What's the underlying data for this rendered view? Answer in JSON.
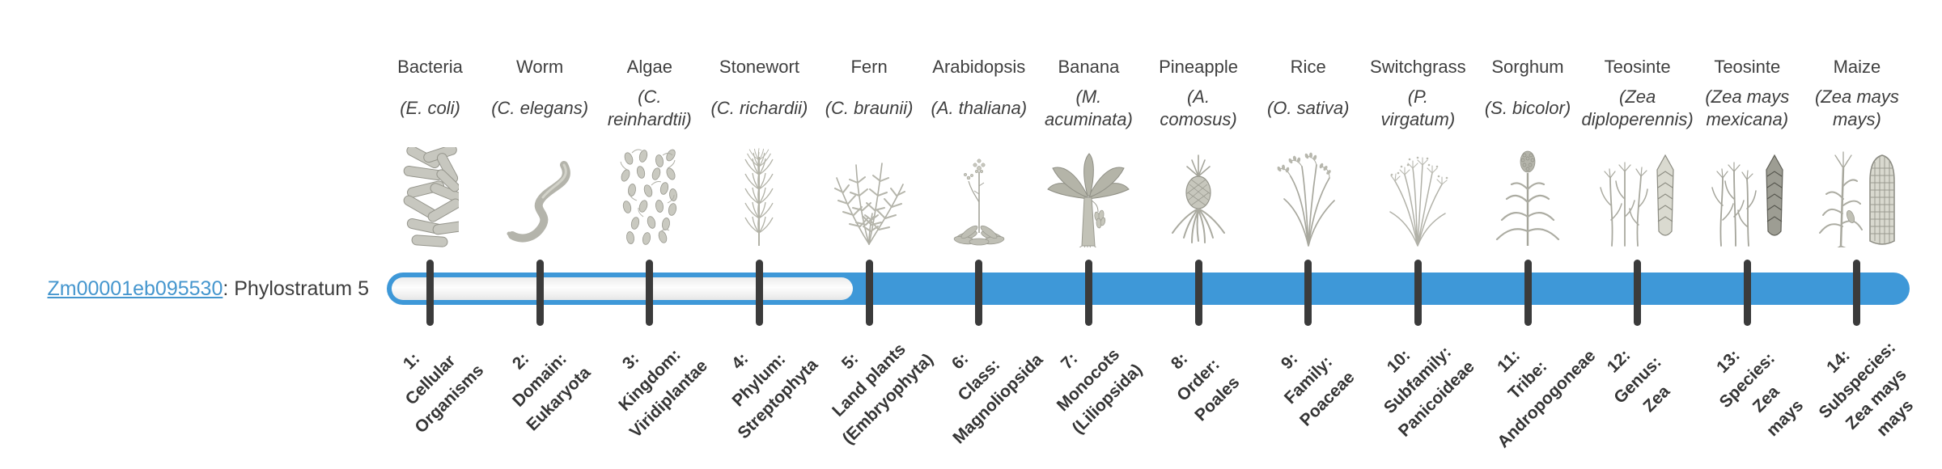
{
  "gene": {
    "id": "Zm00001eb095530",
    "suffix": ": Phylostratum 5",
    "phylostratum": 5
  },
  "colors": {
    "bar_fill": "#3E98D8",
    "link": "#4596CE",
    "tick": "#3B3B3B",
    "text": "#3F3F3F"
  },
  "timeline": {
    "filled_from_stratum": 5,
    "strata": [
      {
        "num": 1,
        "organism": "Bacteria",
        "species": "(E. coli)",
        "icon": "bacteria-icon",
        "tick_label": "1:\nCellular\nOrganisms"
      },
      {
        "num": 2,
        "organism": "Worm",
        "species": "(C. elegans)",
        "icon": "worm-icon",
        "tick_label": "2:\nDomain:\nEukaryota"
      },
      {
        "num": 3,
        "organism": "Algae",
        "species": "(C.\nreinhardtii)",
        "icon": "algae-icon",
        "tick_label": "3:\nKingdom:\nViridiplantae"
      },
      {
        "num": 4,
        "organism": "Stonewort",
        "species": "(C. richardii)",
        "icon": "stonewort-icon",
        "tick_label": "4:\nPhylum:\nStreptophyta"
      },
      {
        "num": 5,
        "organism": "Fern",
        "species": "(C. braunii)",
        "icon": "fern-icon",
        "tick_label": "5:\nLand plants\n(Embryophyta)"
      },
      {
        "num": 6,
        "organism": "Arabidopsis",
        "species": "(A. thaliana)",
        "icon": "arabidopsis-icon",
        "tick_label": "6:\nClass:\nMagnoliopsida"
      },
      {
        "num": 7,
        "organism": "Banana",
        "species": "(M.\nacuminata)",
        "icon": "banana-icon",
        "tick_label": "7:\nMonocots\n(Liliopsida)"
      },
      {
        "num": 8,
        "organism": "Pineapple",
        "species": "(A.\ncomosus)",
        "icon": "pineapple-icon",
        "tick_label": "8:\nOrder:\nPoales"
      },
      {
        "num": 9,
        "organism": "Rice",
        "species": "(O. sativa)",
        "icon": "rice-icon",
        "tick_label": "9:\nFamily:\nPoaceae"
      },
      {
        "num": 10,
        "organism": "Switchgrass",
        "species": "(P.\nvirgatum)",
        "icon": "switchgrass-icon",
        "tick_label": "10:\nSubfamily:\nPanicoideae"
      },
      {
        "num": 11,
        "organism": "Sorghum",
        "species": "(S. bicolor)",
        "icon": "sorghum-icon",
        "tick_label": "11:\nTribe:\nAndropogoneae"
      },
      {
        "num": 12,
        "organism": "Teosinte",
        "species": "(Zea\ndiploperennis)",
        "icon": "teosinte-diplo-icon",
        "tick_label": "12:\nGenus:\nZea"
      },
      {
        "num": 13,
        "organism": "Teosinte",
        "species": "(Zea mays\nmexicana)",
        "icon": "teosinte-mexicana-icon",
        "tick_label": "13:\nSpecies:\nZea\nmays"
      },
      {
        "num": 14,
        "organism": "Maize",
        "species": "(Zea mays\nmays)",
        "icon": "maize-icon",
        "tick_label": "14:\nSubspecies:\nZea mays\nmays"
      }
    ]
  }
}
